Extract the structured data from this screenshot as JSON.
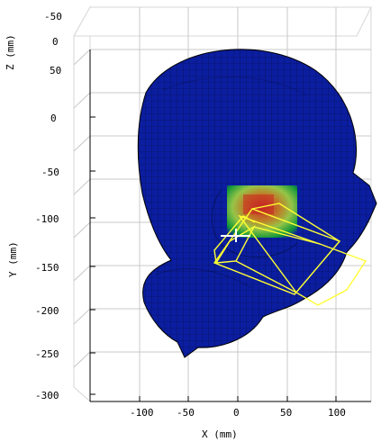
{
  "plot": {
    "axes": {
      "x_label": "X (mm)",
      "y_label": "Y (mm)",
      "z_label": "Z (mm)"
    },
    "x_ticks": [
      "-100",
      "-50",
      "0",
      "50",
      "100"
    ],
    "z_ticks": [
      "-50",
      "0",
      "50"
    ],
    "y_ticks": [
      "0",
      "-50",
      "-100",
      "-150",
      "-200",
      "-250",
      "-300"
    ]
  },
  "colors": {
    "head_mesh": "#0b1ea0",
    "mesh_lines": "#000000",
    "grid_lines": "#c8c8c8",
    "hotspot_core": "#ff2a00",
    "hotspot_warm": "#ff9a00",
    "hotspot_mid": "#c7ff2b",
    "hotspot_edge": "#16c316",
    "wireframe": "#ffff33",
    "marker": "#ffffff"
  }
}
